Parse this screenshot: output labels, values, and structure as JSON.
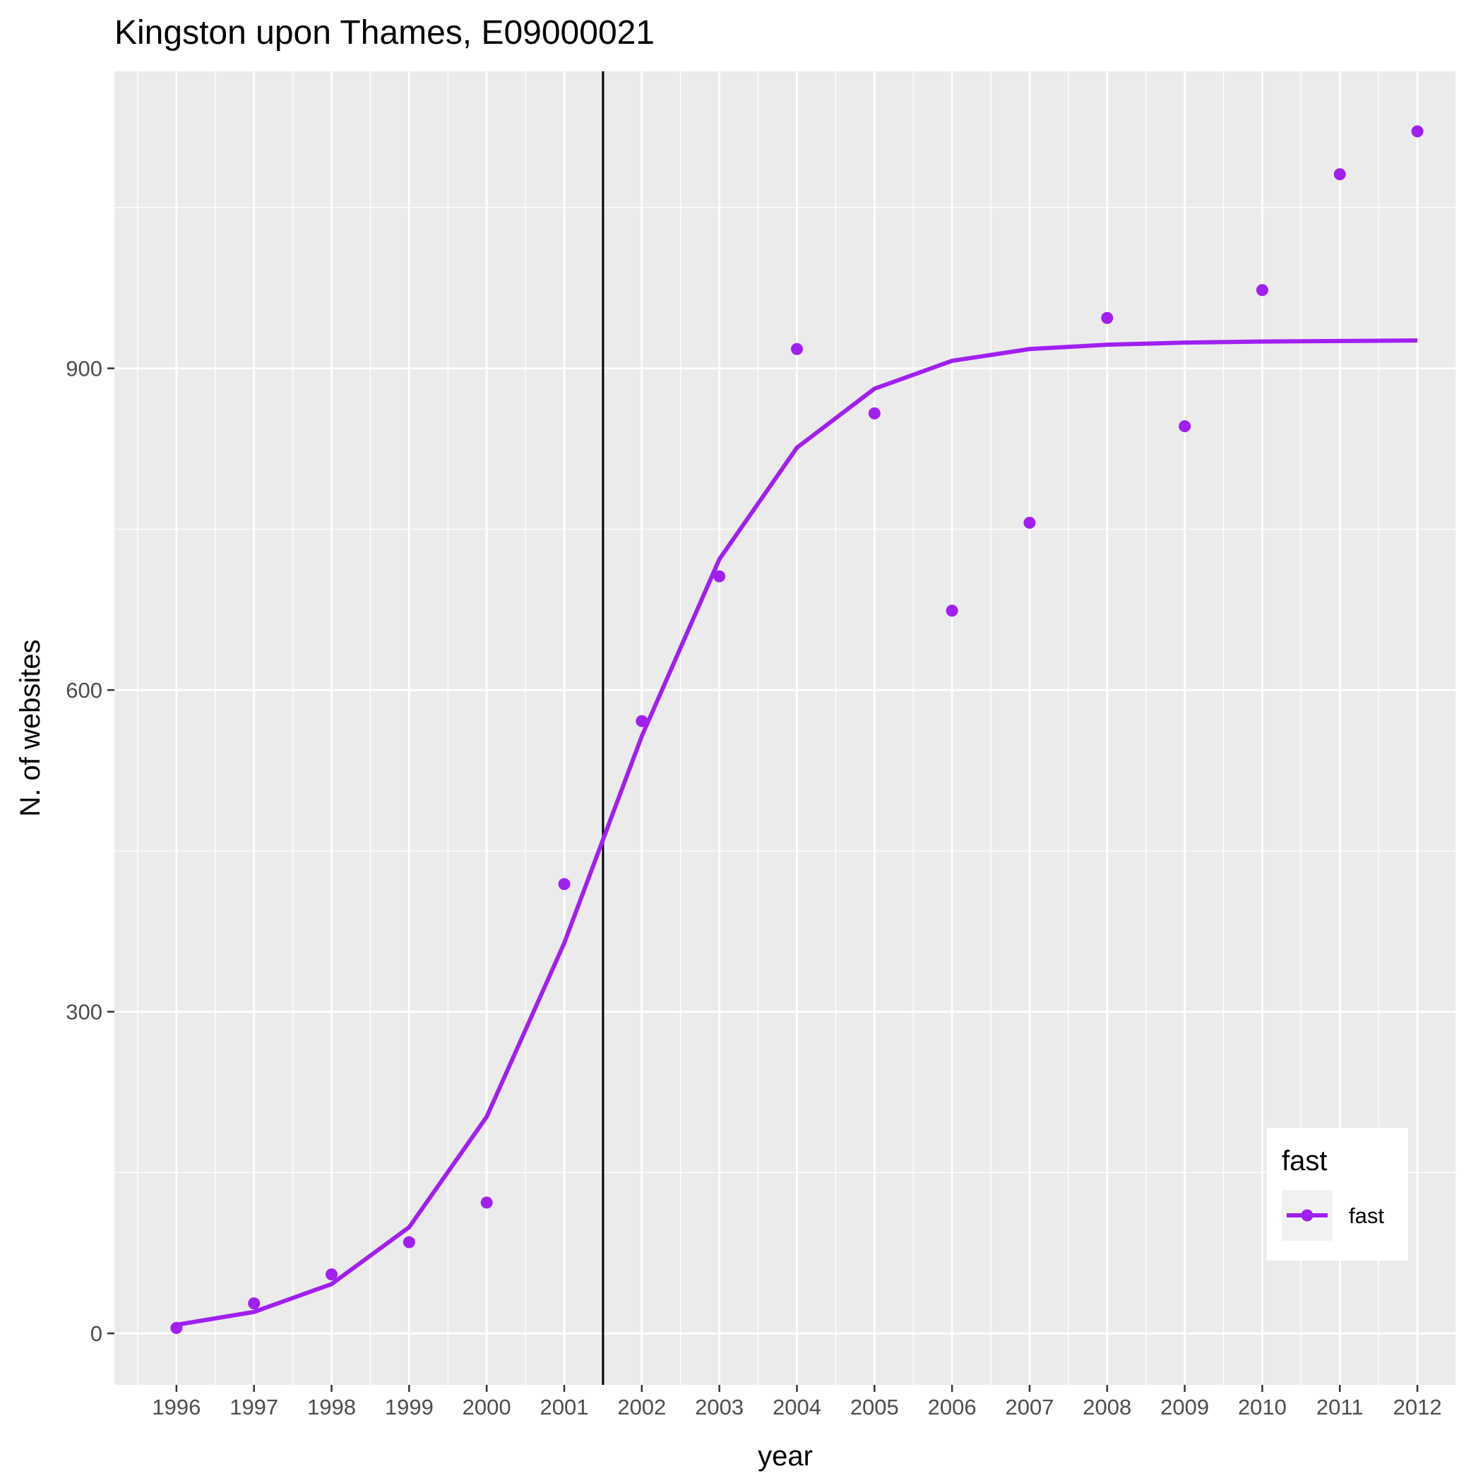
{
  "chart_data": {
    "type": "line",
    "title": "Kingston upon Thames, E09000021",
    "xlabel": "year",
    "ylabel": "N. of websites",
    "x": [
      1996,
      1997,
      1998,
      1999,
      2000,
      2001,
      2002,
      2003,
      2004,
      2005,
      2006,
      2007,
      2008,
      2009,
      2010,
      2011,
      2012
    ],
    "x_tick_labels": [
      "1996",
      "1997",
      "1998",
      "1999",
      "2000",
      "2001",
      "2002",
      "2003",
      "2004",
      "2005",
      "2006",
      "2007",
      "2008",
      "2009",
      "2010",
      "2011",
      "2012"
    ],
    "y_ticks": [
      0,
      300,
      600,
      900
    ],
    "y_tick_labels": [
      "0",
      "300",
      "600",
      "900"
    ],
    "xlim": [
      1995.2,
      2012.5
    ],
    "ylim": [
      -48,
      1177
    ],
    "grid": true,
    "series": [
      {
        "name": "fast",
        "kind": "points",
        "values": [
          5,
          28,
          55,
          85,
          122,
          419,
          571,
          706,
          918,
          858,
          674,
          756,
          947,
          846,
          973,
          1081,
          1121
        ]
      },
      {
        "name": "fast",
        "kind": "line",
        "values": [
          8,
          20,
          46,
          99,
          202,
          364,
          557,
          722,
          826,
          881,
          907,
          918,
          922,
          924,
          925,
          925.5,
          926
        ]
      }
    ],
    "vline": 2001.5,
    "legend": {
      "title": "fast",
      "entries": [
        "fast"
      ],
      "position": "bottom-right inside"
    },
    "colors": {
      "series": "#a020f0",
      "panel_background": "#ebebeb",
      "grid": "#ffffff",
      "vline": "#000000"
    }
  }
}
